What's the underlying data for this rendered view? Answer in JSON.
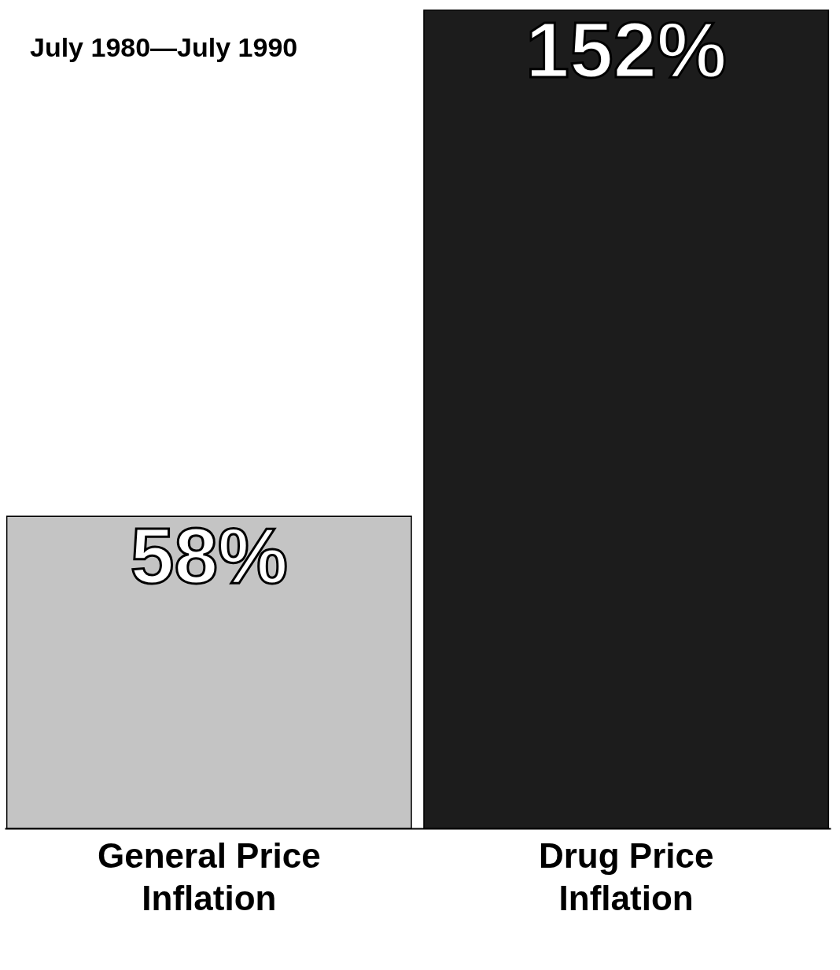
{
  "chart_data": {
    "type": "bar",
    "title": "July 1980—July 1990",
    "categories": [
      "General Price Inflation",
      "Drug Price Inflation"
    ],
    "values": [
      58,
      152
    ],
    "colors": [
      "#c4c4c4",
      "#1c1c1c"
    ],
    "value_labels": [
      "58%",
      "152%"
    ],
    "grid": false
  }
}
